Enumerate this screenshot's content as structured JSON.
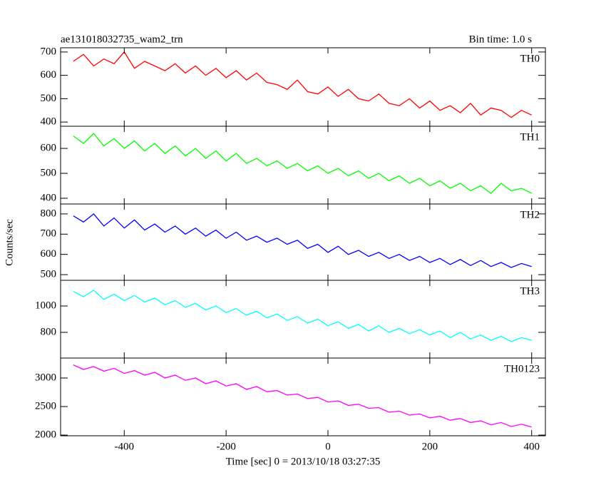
{
  "chart_data": [
    {
      "type": "line",
      "title": "ae131018032735_wam2_trn",
      "subtitle": "Bin time: 1.0 s",
      "x": [
        -500,
        -480,
        -460,
        -440,
        -420,
        -400,
        -380,
        -360,
        -340,
        -320,
        -300,
        -280,
        -260,
        -240,
        -220,
        -200,
        -180,
        -160,
        -140,
        -120,
        -100,
        -80,
        -60,
        -40,
        -20,
        0,
        20,
        40,
        60,
        80,
        100,
        120,
        140,
        160,
        180,
        200,
        220,
        240,
        260,
        280,
        300,
        320,
        340,
        360,
        380,
        400
      ],
      "xlim": [
        -525,
        427
      ],
      "xticks": [
        -400,
        -200,
        0,
        200,
        400
      ],
      "ylim": [
        382,
        718
      ],
      "yticks": [
        400,
        500,
        600,
        700
      ],
      "series": [
        {
          "name": "TH0",
          "color": "#ff0000",
          "values": [
            660,
            690,
            640,
            670,
            650,
            700,
            630,
            660,
            640,
            620,
            650,
            610,
            640,
            600,
            630,
            590,
            620,
            580,
            610,
            570,
            560,
            540,
            580,
            530,
            520,
            550,
            510,
            540,
            500,
            490,
            520,
            480,
            470,
            500,
            460,
            490,
            450,
            470,
            440,
            480,
            430,
            460,
            450,
            420,
            450,
            430
          ]
        }
      ]
    },
    {
      "type": "line",
      "x": [
        -500,
        -480,
        -460,
        -440,
        -420,
        -400,
        -380,
        -360,
        -340,
        -320,
        -300,
        -280,
        -260,
        -240,
        -220,
        -200,
        -180,
        -160,
        -140,
        -120,
        -100,
        -80,
        -60,
        -40,
        -20,
        0,
        20,
        40,
        60,
        80,
        100,
        120,
        140,
        160,
        180,
        200,
        220,
        240,
        260,
        280,
        300,
        320,
        340,
        360,
        380,
        400
      ],
      "xlim": [
        -525,
        427
      ],
      "xticks": [
        -400,
        -200,
        0,
        200,
        400
      ],
      "ylim": [
        377,
        689
      ],
      "yticks": [
        400,
        500,
        600
      ],
      "series": [
        {
          "name": "TH1",
          "color": "#00ff00",
          "values": [
            650,
            620,
            660,
            610,
            640,
            600,
            630,
            590,
            620,
            580,
            610,
            570,
            600,
            560,
            590,
            550,
            580,
            540,
            560,
            530,
            550,
            520,
            540,
            510,
            530,
            500,
            520,
            490,
            510,
            480,
            500,
            470,
            490,
            460,
            480,
            450,
            470,
            440,
            460,
            430,
            450,
            420,
            460,
            430,
            440,
            420
          ]
        }
      ]
    },
    {
      "type": "line",
      "ylabel": "Counts/sec",
      "x": [
        -500,
        -480,
        -460,
        -440,
        -420,
        -400,
        -380,
        -360,
        -340,
        -320,
        -300,
        -280,
        -260,
        -240,
        -220,
        -200,
        -180,
        -160,
        -140,
        -120,
        -100,
        -80,
        -60,
        -40,
        -20,
        0,
        20,
        40,
        60,
        80,
        100,
        120,
        140,
        160,
        180,
        200,
        220,
        240,
        260,
        280,
        300,
        320,
        340,
        360,
        380,
        400
      ],
      "xlim": [
        -525,
        427
      ],
      "xticks": [
        -400,
        -200,
        0,
        200,
        400
      ],
      "ylim": [
        472,
        849
      ],
      "yticks": [
        500,
        600,
        700,
        800
      ],
      "series": [
        {
          "name": "TH2",
          "color": "#0000ff",
          "values": [
            790,
            760,
            800,
            740,
            780,
            730,
            770,
            720,
            750,
            710,
            740,
            700,
            730,
            690,
            720,
            680,
            710,
            670,
            690,
            660,
            680,
            650,
            670,
            630,
            650,
            610,
            640,
            600,
            620,
            590,
            610,
            580,
            600,
            570,
            590,
            560,
            580,
            550,
            575,
            545,
            570,
            540,
            560,
            535,
            555,
            540
          ]
        }
      ]
    },
    {
      "type": "line",
      "x": [
        -500,
        -480,
        -460,
        -440,
        -420,
        -400,
        -380,
        -360,
        -340,
        -320,
        -300,
        -280,
        -260,
        -240,
        -220,
        -200,
        -180,
        -160,
        -140,
        -120,
        -100,
        -80,
        -60,
        -40,
        -20,
        0,
        20,
        40,
        60,
        80,
        100,
        120,
        140,
        160,
        180,
        200,
        220,
        240,
        260,
        280,
        300,
        320,
        340,
        360,
        380,
        400
      ],
      "xlim": [
        -525,
        427
      ],
      "xticks": [
        -400,
        -200,
        0,
        200,
        400
      ],
      "ylim": [
        605,
        1195
      ],
      "yticks": [
        800,
        1000
      ],
      "series": [
        {
          "name": "TH3",
          "color": "#00ffff",
          "values": [
            1110,
            1070,
            1120,
            1050,
            1090,
            1040,
            1080,
            1030,
            1060,
            1010,
            1040,
            990,
            1020,
            970,
            1000,
            950,
            980,
            930,
            960,
            910,
            940,
            890,
            920,
            870,
            900,
            850,
            880,
            830,
            860,
            810,
            850,
            800,
            830,
            790,
            820,
            780,
            810,
            760,
            800,
            750,
            780,
            740,
            770,
            730,
            760,
            740
          ]
        }
      ]
    },
    {
      "type": "line",
      "xlabel": "Time [sec] 0 = 2013/10/18 03:27:35",
      "x": [
        -500,
        -480,
        -460,
        -440,
        -420,
        -400,
        -380,
        -360,
        -340,
        -320,
        -300,
        -280,
        -260,
        -240,
        -220,
        -200,
        -180,
        -160,
        -140,
        -120,
        -100,
        -80,
        -60,
        -40,
        -20,
        0,
        20,
        40,
        60,
        80,
        100,
        120,
        140,
        160,
        180,
        200,
        220,
        240,
        260,
        280,
        300,
        320,
        340,
        360,
        380,
        400
      ],
      "xlim": [
        -525,
        427
      ],
      "xticks": [
        -400,
        -200,
        0,
        200,
        400
      ],
      "ylim": [
        1988,
        3350
      ],
      "yticks": [
        2000,
        2500,
        3000
      ],
      "series": [
        {
          "name": "TH0123",
          "color": "#ff00ff",
          "values": [
            3230,
            3150,
            3200,
            3120,
            3170,
            3080,
            3130,
            3050,
            3100,
            3000,
            3050,
            2960,
            3000,
            2900,
            2950,
            2860,
            2900,
            2800,
            2850,
            2760,
            2780,
            2700,
            2720,
            2640,
            2660,
            2580,
            2600,
            2520,
            2540,
            2470,
            2480,
            2400,
            2420,
            2350,
            2370,
            2300,
            2330,
            2260,
            2290,
            2220,
            2250,
            2180,
            2220,
            2150,
            2190,
            2140
          ]
        }
      ]
    }
  ]
}
